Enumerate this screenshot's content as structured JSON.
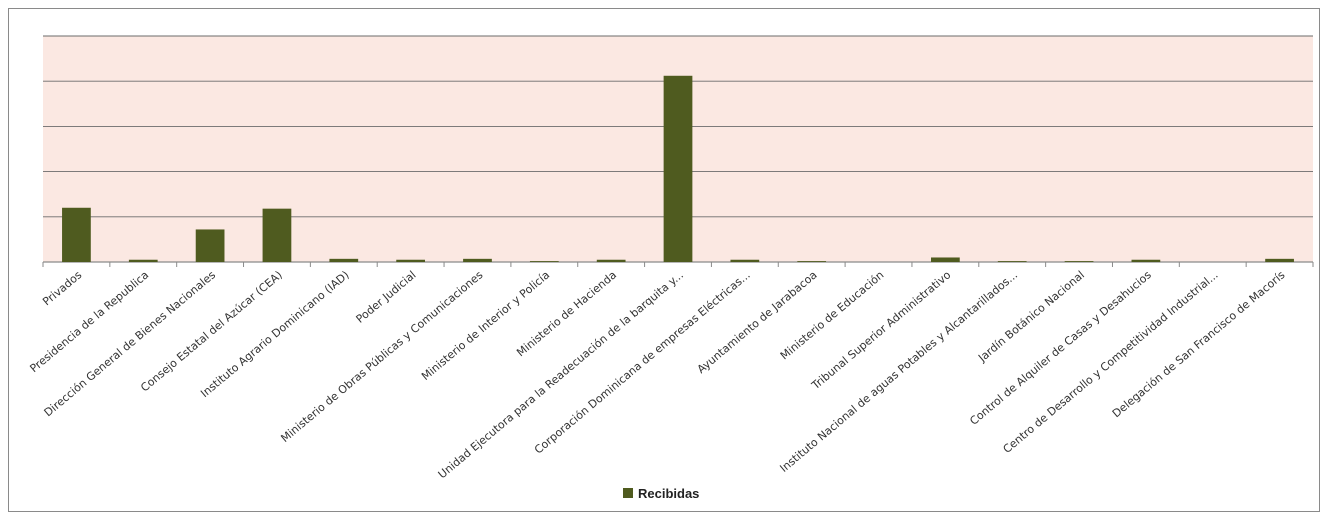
{
  "chart_data": {
    "type": "bar",
    "categories": [
      "Privados",
      "Presidencia de la Republica",
      "Dirección General de Bienes Nacionales",
      "Consejo Estatal del Azúcar (CEA)",
      "Instituto Agrario Dominicano (IAD)",
      "Poder Judicial",
      "Ministerio de Obras Públicas y Comunicaciones",
      "Ministerio de Interior y Policía",
      "Ministerio de Hacienda",
      "Unidad Ejecutora para la Readecuación de la barquita y...",
      "Corporación Dominicana de empresas Eléctricas...",
      "Ayuntamiento de Jarabacoa",
      "Ministerio de Educación",
      "Tribunal Superior Administrativo",
      "Instituto Nacional de aguas Potables y Alcantarillados...",
      "Jardín Botánico Nacional",
      "Control de Alquiler de Casas y Desahucios",
      "Centro de Desarrollo y Competitividad Industrial...",
      "Delegación de San Francisco de Macorís"
    ],
    "series": [
      {
        "name": "Recibidas",
        "color": "#4f5b1f",
        "values": [
          1.2,
          0.05,
          0.72,
          1.18,
          0.07,
          0.05,
          0.07,
          0.02,
          0.05,
          4.12,
          0.05,
          0.02,
          0.0,
          0.1,
          0.02,
          0.02,
          0.05,
          0.0,
          0.07
        ]
      }
    ],
    "ylim": [
      0,
      5
    ],
    "grid": true,
    "plot_background": "#fbe8e2",
    "gridline_color": "#6b6b6b",
    "legend": {
      "position": "bottom",
      "label": "Recibidas"
    },
    "title": "",
    "xlabel": "",
    "ylabel": ""
  }
}
